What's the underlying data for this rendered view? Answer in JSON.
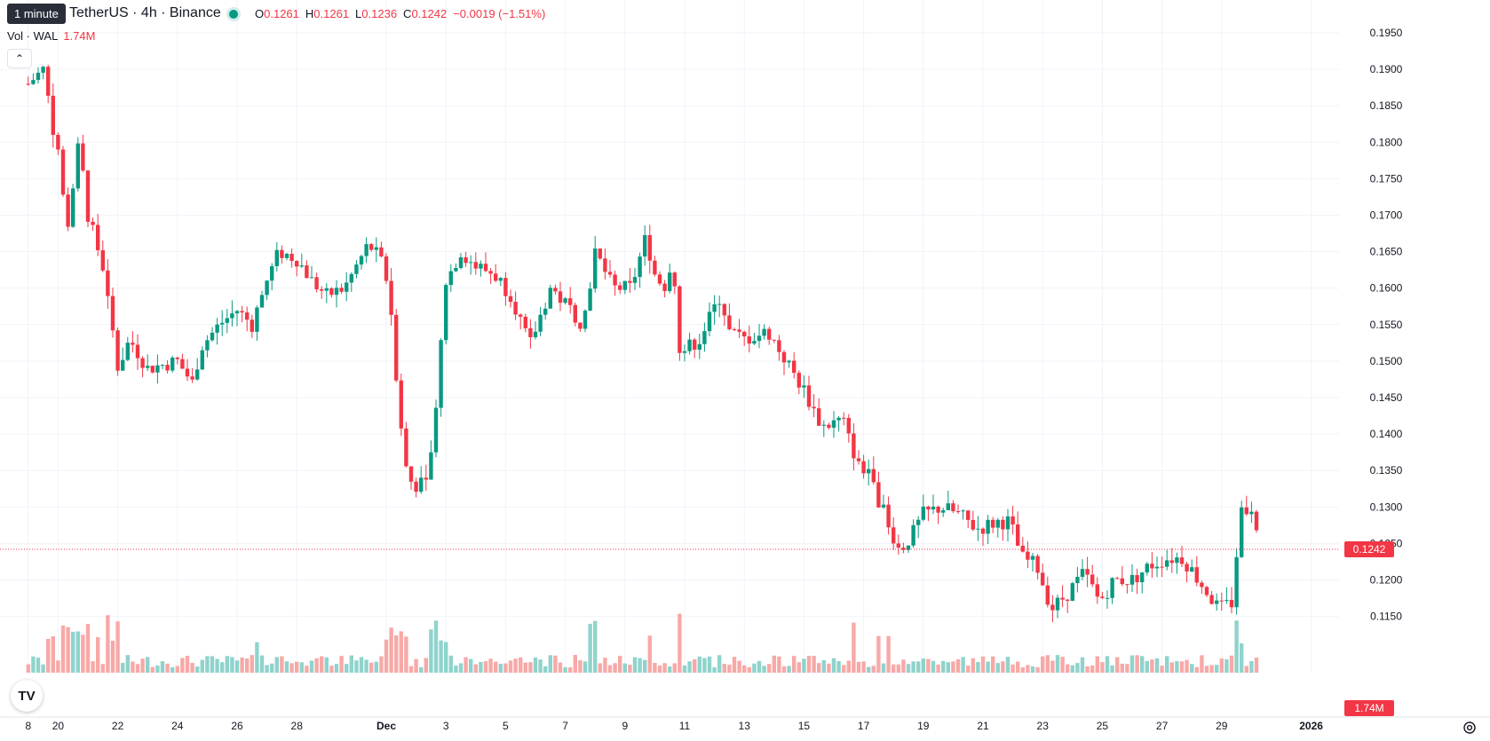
{
  "header": {
    "tooltip": "1 minute",
    "symbol": "TetherUS · 4h · Binance",
    "ohlc": {
      "o_label": "O",
      "o": "0.1261",
      "h_label": "H",
      "h": "0.1261",
      "l_label": "L",
      "l": "0.1236",
      "c_label": "C",
      "c": "0.1242",
      "change": "−0.0019 (−1.51%)"
    },
    "volume_label": "Vol · WAL",
    "volume_value": "1.74M"
  },
  "colors": {
    "up": "#089981",
    "down": "#f23645",
    "up_vol": "#8fd3cc",
    "down_vol": "#f7a9a7",
    "grid": "#f0f3fa",
    "axis_text": "#131722"
  },
  "icons": {
    "logo": "tradingview-logo-icon",
    "collapse": "chevron-up-icon",
    "settings": "gear-icon"
  },
  "chart_data": {
    "type": "candlestick",
    "interval": "4h",
    "ylim": [
      0.1125,
      0.1975
    ],
    "y_ticks": [
      "0.1950",
      "0.1900",
      "0.1850",
      "0.1800",
      "0.1750",
      "0.1700",
      "0.1650",
      "0.1600",
      "0.1550",
      "0.1500",
      "0.1450",
      "0.1400",
      "0.1350",
      "0.1300",
      "0.1250",
      "0.1200",
      "0.1150"
    ],
    "x_labels": [
      "8",
      "20",
      "22",
      "24",
      "26",
      "28",
      "Dec",
      "3",
      "5",
      "7",
      "9",
      "11",
      "13",
      "15",
      "17",
      "19",
      "21",
      "23",
      "25",
      "27",
      "29",
      "2026"
    ],
    "x_label_days": [
      -12,
      -11,
      -9,
      -7,
      -5,
      -3,
      0,
      2,
      4,
      6,
      8,
      10,
      12,
      14,
      16,
      18,
      20,
      22,
      24,
      26,
      28,
      31
    ],
    "last_price": "0.1242",
    "last_volume": "1.74M",
    "close_points": [
      [
        -12,
        0.188
      ],
      [
        -11.5,
        0.19
      ],
      [
        -11,
        0.178
      ],
      [
        -10.7,
        0.168
      ],
      [
        -10.3,
        0.18
      ],
      [
        -10,
        0.17
      ],
      [
        -9.5,
        0.163
      ],
      [
        -9,
        0.149
      ],
      [
        -8.6,
        0.153
      ],
      [
        -8,
        0.149
      ],
      [
        -7,
        0.15
      ],
      [
        -6.5,
        0.147
      ],
      [
        -6.2,
        0.152
      ],
      [
        -5.6,
        0.155
      ],
      [
        -5,
        0.157
      ],
      [
        -4.5,
        0.155
      ],
      [
        -4,
        0.161
      ],
      [
        -3.6,
        0.165
      ],
      [
        -3,
        0.164
      ],
      [
        -2.5,
        0.161
      ],
      [
        -2,
        0.159
      ],
      [
        -1.4,
        0.16
      ],
      [
        -0.6,
        0.166
      ],
      [
        -0.2,
        0.164
      ],
      [
        0.1,
        0.16
      ],
      [
        0.4,
        0.145
      ],
      [
        0.7,
        0.134
      ],
      [
        1,
        0.133
      ],
      [
        1.4,
        0.133
      ],
      [
        1.7,
        0.146
      ],
      [
        2,
        0.161
      ],
      [
        2.5,
        0.165
      ],
      [
        3,
        0.163
      ],
      [
        3.6,
        0.162
      ],
      [
        4.2,
        0.159
      ],
      [
        4.8,
        0.152
      ],
      [
        5.5,
        0.16
      ],
      [
        6.2,
        0.157
      ],
      [
        6.6,
        0.155
      ],
      [
        7,
        0.165
      ],
      [
        7.6,
        0.16
      ],
      [
        8.2,
        0.16
      ],
      [
        8.7,
        0.167
      ],
      [
        9,
        0.162
      ],
      [
        9.4,
        0.16
      ],
      [
        9.6,
        0.166
      ],
      [
        9.8,
        0.151
      ],
      [
        10.5,
        0.153
      ],
      [
        11.2,
        0.159
      ],
      [
        11.5,
        0.154
      ],
      [
        12,
        0.153
      ],
      [
        12.8,
        0.154
      ],
      [
        13.4,
        0.15
      ],
      [
        14,
        0.146
      ],
      [
        14.6,
        0.141
      ],
      [
        15.3,
        0.142
      ],
      [
        15.6,
        0.138
      ],
      [
        16.2,
        0.134
      ],
      [
        16.7,
        0.129
      ],
      [
        17.2,
        0.124
      ],
      [
        17.6,
        0.126
      ],
      [
        18,
        0.129
      ],
      [
        18.6,
        0.13
      ],
      [
        19.2,
        0.129
      ],
      [
        19.8,
        0.127
      ],
      [
        20.5,
        0.128
      ],
      [
        20.9,
        0.128
      ],
      [
        21.3,
        0.123
      ],
      [
        21.8,
        0.122
      ],
      [
        22.3,
        0.116
      ],
      [
        22.8,
        0.118
      ],
      [
        23.4,
        0.121
      ],
      [
        23.9,
        0.117
      ],
      [
        24.4,
        0.12
      ],
      [
        25,
        0.12
      ],
      [
        25.6,
        0.122
      ],
      [
        26.2,
        0.123
      ],
      [
        26.7,
        0.123
      ],
      [
        27.4,
        0.119
      ],
      [
        27.9,
        0.116
      ],
      [
        28.4,
        0.117
      ],
      [
        28.6,
        0.13
      ],
      [
        29,
        0.13
      ],
      [
        29.3,
        0.1242
      ]
    ]
  }
}
